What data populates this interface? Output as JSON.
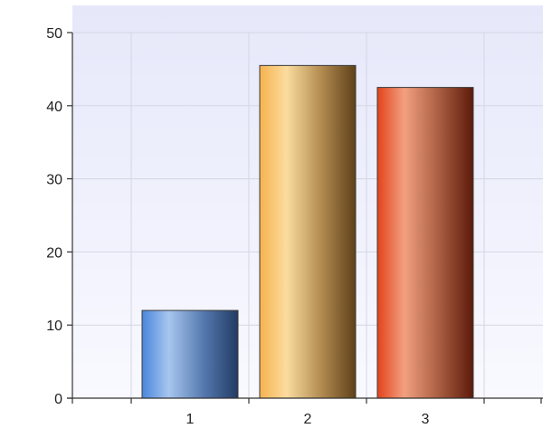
{
  "chart_data": {
    "type": "bar",
    "title": "",
    "xlabel": "",
    "ylabel": "",
    "categories": [
      "1",
      "2",
      "3"
    ],
    "values": [
      12,
      45.5,
      42.5
    ],
    "ylim": [
      0,
      50
    ],
    "yticks": [
      0,
      10,
      20,
      30,
      40,
      50
    ],
    "grid": true,
    "legend": "none",
    "colors": {
      "bar_1": "#4f87d6",
      "bar_2": "#d9a64e",
      "bar_3": "#c8522c",
      "plot_background_top": "#e6e8fa",
      "plot_background_bottom": "#f9f9ff",
      "grid": "#d4d6e4",
      "axis": "#333333"
    }
  }
}
